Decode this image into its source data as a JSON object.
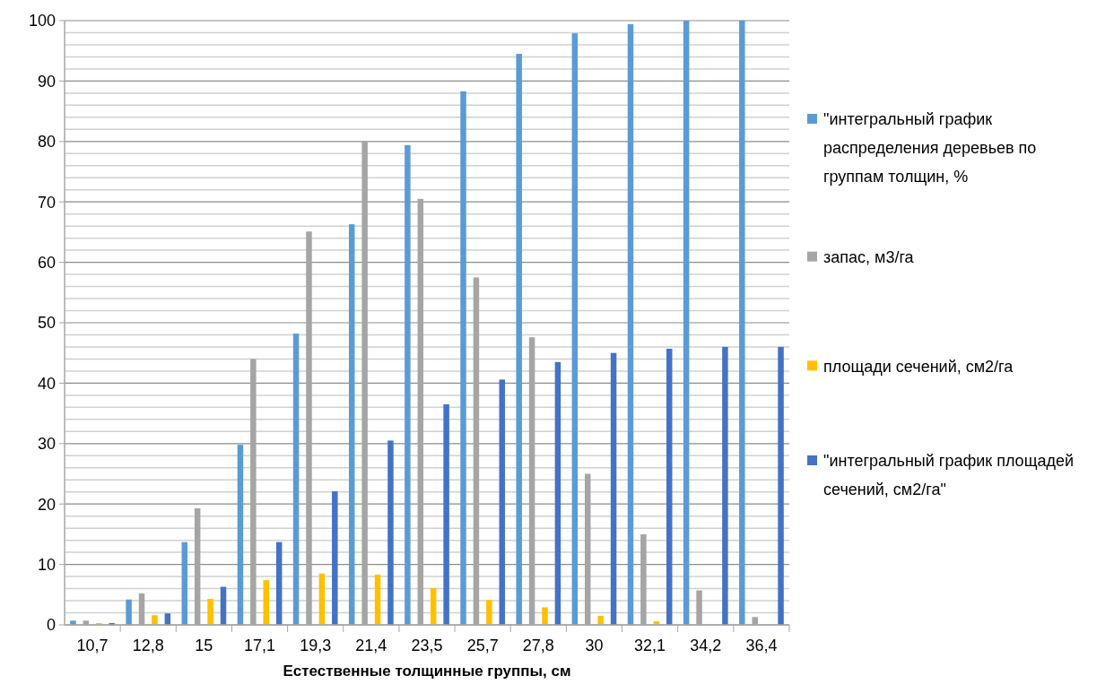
{
  "chart_data": {
    "type": "bar",
    "xlabel": "Естественные толщинные группы, см",
    "categories": [
      "10,7",
      "12,8",
      "15",
      "17,1",
      "19,3",
      "21,4",
      "23,5",
      "25,7",
      "27,8",
      "30",
      "32,1",
      "34,2",
      "36,4"
    ],
    "series": [
      {
        "name": "\"интегральный график распределения деревьев по группам толщин, %",
        "color": "#5b9bd5",
        "values": [
          0.7,
          4.2,
          13.7,
          29.8,
          48.2,
          66.3,
          79.4,
          88.3,
          94.5,
          97.9,
          99.4,
          100,
          100
        ]
      },
      {
        "name": "запас, м3/га",
        "color": "#a5a5a5",
        "values": [
          0.7,
          5.2,
          19.3,
          44,
          65.1,
          80,
          70.5,
          57.5,
          47.6,
          25,
          15,
          5.7,
          1.3
        ]
      },
      {
        "name": "площади сечений, см2/га",
        "color": "#ffc000",
        "values": [
          0.3,
          1.6,
          4.3,
          7.4,
          8.5,
          8.3,
          6.1,
          4.1,
          2.9,
          1.5,
          0.6,
          null,
          null
        ]
      },
      {
        "name": "\"интегральный график площадей сечений, см2/га\"",
        "color": "#4472c4",
        "values": [
          0.3,
          1.9,
          6.3,
          13.7,
          22.1,
          30.5,
          36.5,
          40.6,
          43.5,
          45,
          45.7,
          46,
          46
        ]
      }
    ],
    "ylim": [
      0,
      100
    ],
    "yticks": [
      0,
      {
        "value": 2,
        "label": null
      },
      {
        "value": 4,
        "label": null
      },
      {
        "value": 6,
        "label": null
      },
      {
        "value": 8,
        "label": null
      },
      10,
      {
        "value": 12,
        "label": null
      },
      {
        "value": 14,
        "label": null
      },
      {
        "value": 16,
        "label": null
      },
      {
        "value": 18,
        "label": null
      },
      20,
      {
        "value": 22,
        "label": null
      },
      {
        "value": 24,
        "label": null
      },
      {
        "value": 26,
        "label": null
      },
      {
        "value": 28,
        "label": null
      },
      30,
      {
        "value": 32,
        "label": null
      },
      {
        "value": 34,
        "label": null
      },
      {
        "value": 36,
        "label": null
      },
      {
        "value": 38,
        "label": null
      },
      40,
      {
        "value": 42,
        "label": null
      },
      {
        "value": 44,
        "label": null
      },
      {
        "value": 46,
        "label": null
      },
      {
        "value": 48,
        "label": null
      },
      50,
      {
        "value": 52,
        "label": null
      },
      {
        "value": 54,
        "label": null
      },
      {
        "value": 56,
        "label": null
      },
      {
        "value": 58,
        "label": null
      },
      60,
      {
        "value": 62,
        "label": null
      },
      {
        "value": 64,
        "label": null
      },
      {
        "value": 66,
        "label": null
      },
      {
        "value": 68,
        "label": null
      },
      70,
      {
        "value": 72,
        "label": null
      },
      {
        "value": 74,
        "label": null
      },
      {
        "value": 76,
        "label": null
      },
      {
        "value": 78,
        "label": null
      },
      80,
      {
        "value": 82,
        "label": null
      },
      {
        "value": 84,
        "label": null
      },
      {
        "value": 86,
        "label": null
      },
      {
        "value": 88,
        "label": null
      },
      90,
      {
        "value": 92,
        "label": null
      },
      {
        "value": 94,
        "label": null
      },
      {
        "value": 96,
        "label": null
      },
      {
        "value": 98,
        "label": null
      },
      100
    ],
    "grid": "y",
    "legend": "right"
  }
}
